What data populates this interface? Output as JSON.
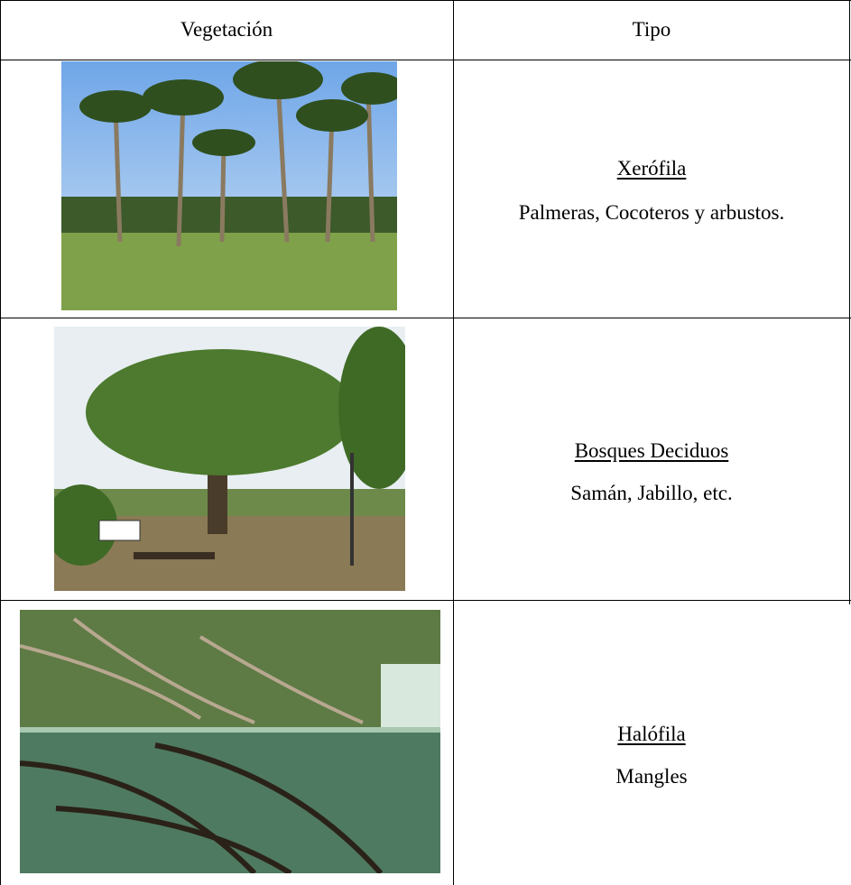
{
  "table": {
    "header": [
      "Vegetación",
      "Tipo"
    ],
    "rows": [
      {
        "type": "Xerófila",
        "description": "Palmeras, Cocoteros y arbustos."
      },
      {
        "type": "Bosques Deciduos",
        "description": "Samán, Jabillo, etc."
      },
      {
        "type": "Halófila",
        "description": "Mangles"
      }
    ]
  }
}
